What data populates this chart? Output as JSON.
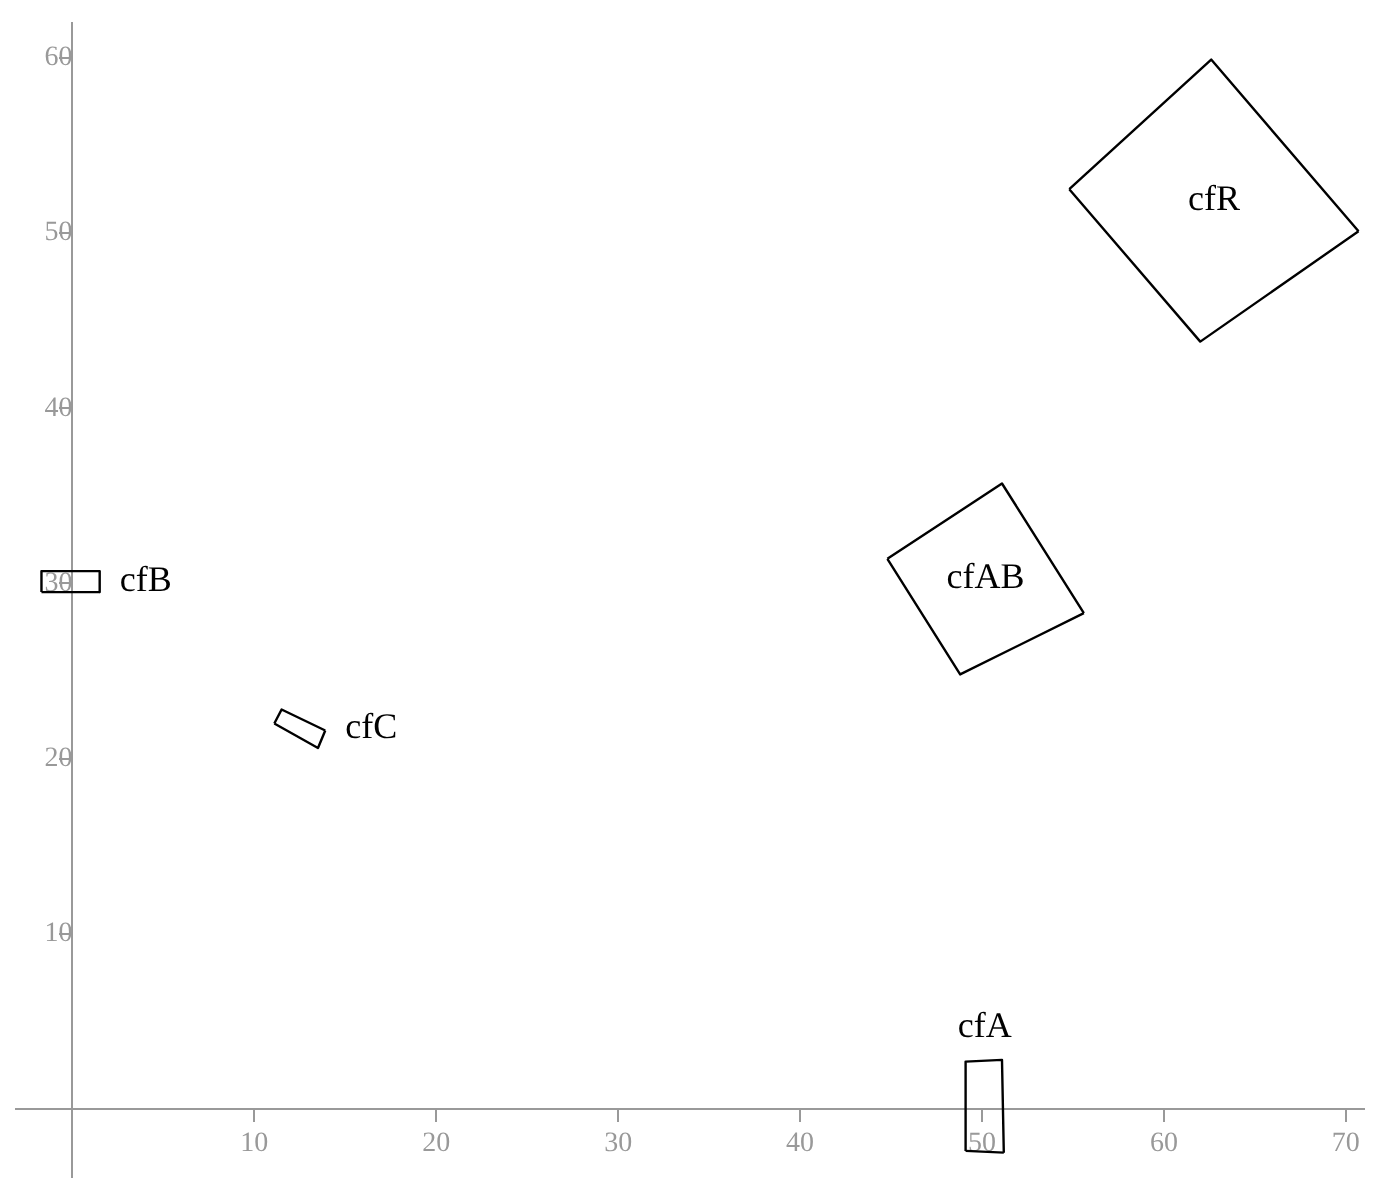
{
  "chart_data": {
    "type": "line",
    "xlim": [
      -3.1,
      71
    ],
    "ylim": [
      -3.9,
      62
    ],
    "xticks": [
      10,
      20,
      30,
      40,
      50,
      60,
      70
    ],
    "yticks": [
      10,
      20,
      30,
      40,
      50,
      60
    ],
    "grid": false,
    "marker": "none",
    "line_style": "solid",
    "series": [
      {
        "name": "cfR",
        "color": "#000000",
        "x": [
          54.8,
          62.6,
          70.7
        ],
        "values": [
          52.5,
          59.9,
          50.1
        ]
      },
      {
        "color": "#000000",
        "x": [
          54.8,
          62.0,
          70.7
        ],
        "values": [
          52.5,
          43.8,
          50.1
        ]
      },
      {
        "name": "cfAB",
        "color": "#000000",
        "x": [
          44.8,
          51.1,
          55.6
        ],
        "values": [
          31.4,
          35.7,
          28.3
        ]
      },
      {
        "color": "#000000",
        "x": [
          44.8,
          48.8,
          55.6
        ],
        "values": [
          31.4,
          24.8,
          28.3
        ]
      },
      {
        "name": "cfB",
        "color": "#000000",
        "x": [
          -1.7,
          -1.7,
          1.5,
          1.5
        ],
        "values": [
          29.5,
          30.7,
          30.7,
          29.5
        ]
      },
      {
        "color": "#000000",
        "x": [
          -1.7,
          1.5
        ],
        "values": [
          29.5,
          29.5
        ]
      },
      {
        "name": "cfC",
        "color": "#000000",
        "x": [
          11.1,
          11.5,
          13.9
        ],
        "values": [
          22.0,
          22.8,
          21.6
        ]
      },
      {
        "color": "#000000",
        "x": [
          11.1,
          13.5,
          13.9
        ],
        "values": [
          22.0,
          20.6,
          21.6
        ]
      },
      {
        "name": "cfA",
        "color": "#000000",
        "x": [
          49.1,
          49.1,
          51.1,
          51.2
        ],
        "values": [
          -2.4,
          2.7,
          2.8,
          -2.5
        ]
      },
      {
        "color": "#000000",
        "x": [
          49.1,
          51.2
        ],
        "values": [
          -2.4,
          -2.5
        ]
      }
    ]
  }
}
